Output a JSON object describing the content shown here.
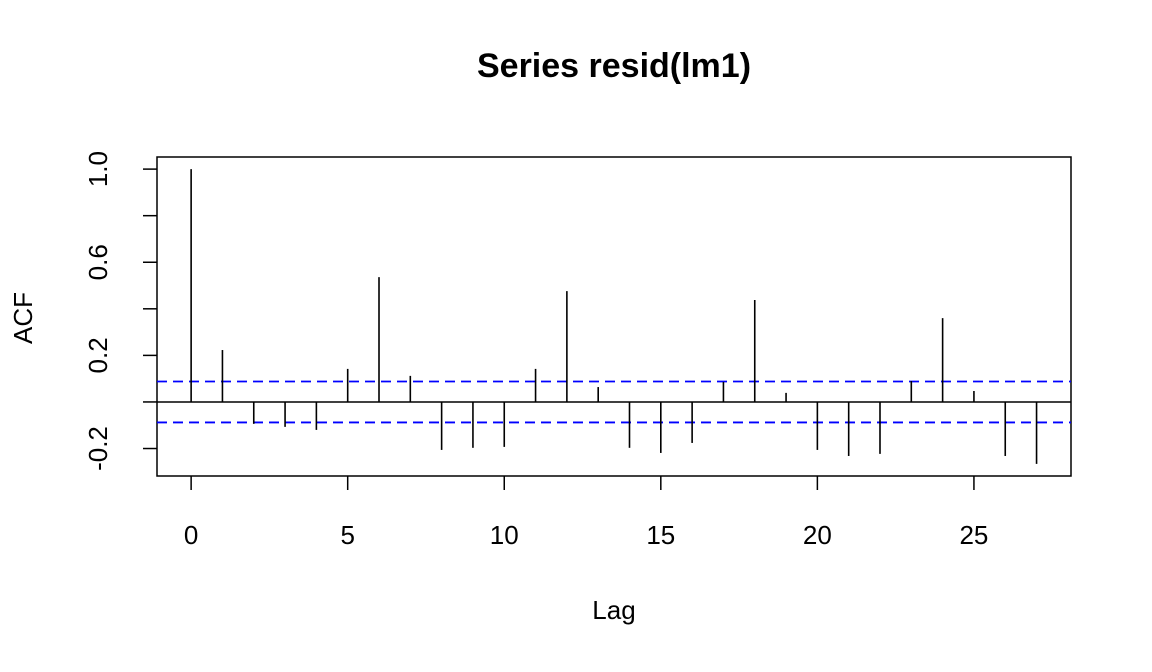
{
  "chart_data": {
    "type": "acf",
    "title": "Series  resid(lm1)",
    "x_label": "Lag",
    "y_label": "ACF",
    "x": [
      0,
      1,
      2,
      3,
      4,
      5,
      6,
      7,
      8,
      9,
      10,
      11,
      12,
      13,
      14,
      15,
      16,
      17,
      18,
      19,
      20,
      21,
      22,
      23,
      24,
      25,
      26,
      27
    ],
    "values": [
      1.0,
      0.223,
      -0.094,
      -0.107,
      -0.12,
      0.142,
      0.536,
      0.112,
      -0.206,
      -0.197,
      -0.193,
      0.142,
      0.476,
      0.064,
      -0.197,
      -0.219,
      -0.176,
      0.086,
      0.438,
      0.039,
      -0.206,
      -0.232,
      -0.223,
      0.09,
      0.36,
      0.047,
      -0.232,
      -0.266
    ],
    "color": "#000000",
    "confidence_band": [
      -0.088,
      0.088
    ],
    "confidence_color": "#0000ff",
    "xlim": [
      -1.09,
      28.1
    ],
    "xticks": [
      0,
      5,
      10,
      15,
      20,
      25
    ],
    "ylim": [
      -0.318,
      1.052
    ],
    "yticks": [
      -0.2,
      0.2,
      0.6,
      {
        "value": 1,
        "label": "1.0"
      }
    ],
    "yminorticks": [
      0,
      0.4,
      0.8
    ]
  }
}
